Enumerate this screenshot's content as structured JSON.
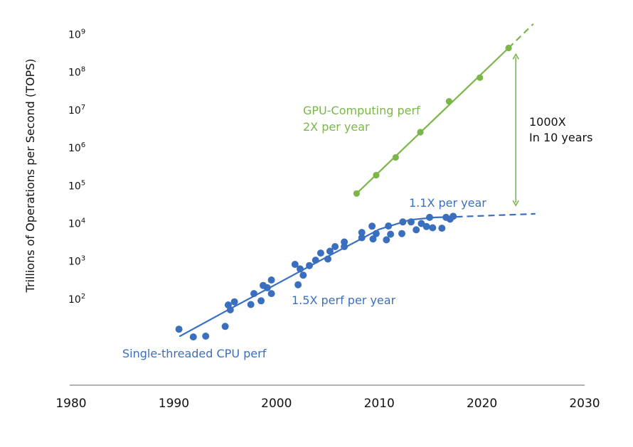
{
  "chart_data": {
    "type": "scatter",
    "title": "",
    "xlabel": "",
    "ylabel": "Trillions of Operations per Second (TOPS)",
    "yscale": "log",
    "xlim": [
      1980,
      2030
    ],
    "ylim_exponents": [
      0.3,
      9.3
    ],
    "x_ticks": [
      "1980",
      "1990",
      "2000",
      "2010",
      "2020",
      "2030"
    ],
    "y_ticks": [
      {
        "base": "10",
        "exp": "9",
        "value": 1000000000
      },
      {
        "base": "10",
        "exp": "8",
        "value": 100000000
      },
      {
        "base": "10",
        "exp": "7",
        "value": 10000000
      },
      {
        "base": "10",
        "exp": "6",
        "value": 1000000
      },
      {
        "base": "10",
        "exp": "5",
        "value": 100000
      },
      {
        "base": "10",
        "exp": "4",
        "value": 10000
      },
      {
        "base": "10",
        "exp": "3",
        "value": 1000
      },
      {
        "base": "10",
        "exp": "2",
        "value": 100
      }
    ],
    "grid": false,
    "colors": {
      "cpu": "#3a6fbf",
      "gpu": "#7ab648",
      "axis": "#9a9a9a",
      "text": "#111111"
    },
    "series": [
      {
        "name": "Single-threaded CPU perf",
        "color": "#3a6fbf",
        "points": [
          [
            1990.5,
            16
          ],
          [
            1991.9,
            10
          ],
          [
            1993.1,
            10.5
          ],
          [
            1995.0,
            19
          ],
          [
            1995.3,
            70
          ],
          [
            1995.5,
            52
          ],
          [
            1995.9,
            85
          ],
          [
            1997.5,
            72
          ],
          [
            1997.8,
            140
          ],
          [
            1998.5,
            90
          ],
          [
            1998.7,
            230
          ],
          [
            1999.1,
            200
          ],
          [
            1999.5,
            320
          ],
          [
            1999.5,
            140
          ],
          [
            2001.8,
            830
          ],
          [
            2002.1,
            240
          ],
          [
            2002.3,
            630
          ],
          [
            2002.6,
            430
          ],
          [
            2003.2,
            770
          ],
          [
            2003.8,
            1070
          ],
          [
            2004.3,
            1650
          ],
          [
            2005.0,
            1150
          ],
          [
            2005.2,
            1850
          ],
          [
            2005.7,
            2450
          ],
          [
            2006.6,
            3250
          ],
          [
            2006.6,
            2450
          ],
          [
            2008.3,
            5800
          ],
          [
            2008.3,
            4200
          ],
          [
            2009.3,
            8500
          ],
          [
            2009.4,
            3900
          ],
          [
            2009.7,
            5400
          ],
          [
            2010.7,
            3700
          ],
          [
            2010.9,
            8600
          ],
          [
            2011.1,
            5200
          ],
          [
            2012.3,
            11000
          ],
          [
            2012.2,
            5400
          ],
          [
            2013.1,
            11000
          ],
          [
            2013.6,
            6800
          ],
          [
            2014.1,
            10000
          ],
          [
            2014.6,
            8300
          ],
          [
            2014.9,
            14500
          ],
          [
            2015.2,
            7700
          ],
          [
            2016.1,
            7500
          ],
          [
            2016.5,
            14500
          ],
          [
            2016.9,
            13000
          ],
          [
            2017.2,
            15500
          ]
        ],
        "trend_solid": [
          [
            1990.6,
            10.5
          ],
          [
            1995,
            47
          ],
          [
            2000,
            250
          ],
          [
            2005,
            1350
          ],
          [
            2010,
            7000
          ],
          [
            2013,
            12500
          ],
          [
            2015.5,
            14500
          ],
          [
            2017.5,
            15000
          ]
        ],
        "trend_dashed": [
          [
            2017.5,
            15000
          ],
          [
            2025.2,
            18000
          ]
        ]
      },
      {
        "name": "GPU-Computing perf",
        "color": "#7ab648",
        "points": [
          [
            2007.8,
            62000
          ],
          [
            2009.7,
            190000
          ],
          [
            2011.6,
            560000
          ],
          [
            2014.0,
            2600000
          ],
          [
            2016.8,
            17000000
          ],
          [
            2019.8,
            72000000
          ],
          [
            2022.6,
            440000000
          ]
        ],
        "trend_solid": [
          [
            2007.8,
            62000
          ],
          [
            2022.6,
            440000000
          ]
        ],
        "trend_dashed": [
          [
            2022.6,
            440000000
          ],
          [
            2025.0,
            1900000000
          ]
        ]
      }
    ],
    "annotations": {
      "gpu_label_line1": "GPU-Computing perf",
      "gpu_label_line2": "2X per year",
      "cpu_label": "Single-threaded CPU perf",
      "cpu_rate_early": "1.5X perf per year",
      "cpu_rate_late": "1.1X per year",
      "gap_line1": "1000X",
      "gap_line2": "In 10 years",
      "gap_arrow": {
        "x": 2023.3,
        "y_top": 300000000,
        "y_bottom": 30000
      }
    }
  }
}
